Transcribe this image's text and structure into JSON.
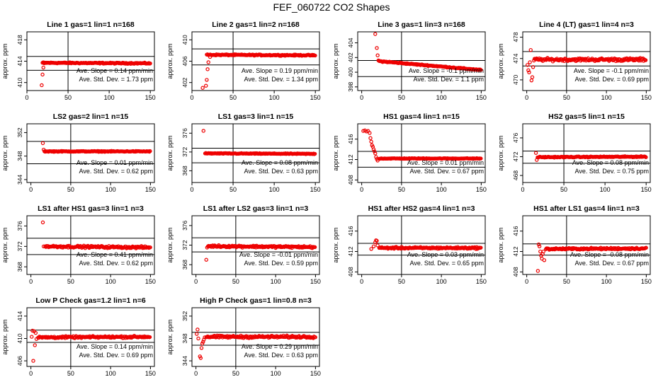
{
  "page": {
    "title": "FEF_060722  CO2 Shapes"
  },
  "chart_data": [
    {
      "type": "scatter",
      "title": "Line 1 gas=1 lin=1 n=168",
      "ylabel": "approx. ppm",
      "xlim": [
        0,
        155
      ],
      "ylim": [
        408.5,
        419.5
      ],
      "xticks": [
        0,
        50,
        100,
        150
      ],
      "yticks": [
        410,
        414,
        418
      ],
      "hlines": [
        414.9,
        412.3
      ],
      "vline": 50,
      "slope_label": "Ave. Slope =  0.14  ppm/min",
      "std_label": "Ave. Std. Dev. =  1.73  ppm",
      "shape": {
        "start": 19,
        "end": 150,
        "early": [
          [
            18,
            409.5
          ],
          [
            19,
            411.5
          ],
          [
            20,
            412.8
          ],
          [
            21,
            413.6
          ]
        ],
        "level": 413.7,
        "end_level": 413.6,
        "noise": 0.15
      }
    },
    {
      "type": "scatter",
      "title": "Line 2 gas=1 lin=2 n=168",
      "ylabel": "approx. ppm",
      "xlim": [
        0,
        155
      ],
      "ylim": [
        400.5,
        411.5
      ],
      "xticks": [
        0,
        50,
        100,
        150
      ],
      "yticks": [
        402,
        406,
        410
      ],
      "hlines": [
        408.3,
        405.3
      ],
      "vline": 50,
      "slope_label": "Ave. Slope =  0.19  ppm/min",
      "std_label": "Ave. Std. Dev. =  1.34  ppm",
      "shape": {
        "start": 18,
        "end": 150,
        "early": [
          [
            13,
            401
          ],
          [
            17,
            401.4
          ],
          [
            18,
            402.5
          ],
          [
            19,
            404.5
          ],
          [
            20,
            405.8
          ],
          [
            22,
            406.8
          ]
        ],
        "level": 407.2,
        "end_level": 407.1,
        "noise": 0.15
      }
    },
    {
      "type": "scatter",
      "title": "Line 3 gas=1 lin=3 n=168",
      "ylabel": "approx. ppm",
      "xlim": [
        -5,
        155
      ],
      "ylim": [
        397.5,
        405.5
      ],
      "xticks": [
        0,
        50,
        100,
        150
      ],
      "yticks": [
        398,
        400,
        402,
        404
      ],
      "hlines": [
        401.6,
        399.4
      ],
      "vline": 50,
      "slope_label": "Ave. Slope =  -0.1  ppm/min",
      "std_label": "Ave. Std. Dev. =  1.1  ppm",
      "shape": {
        "start": 22,
        "end": 150,
        "early": [
          [
            17,
            405.2
          ],
          [
            19,
            403.3
          ],
          [
            20,
            402.3
          ],
          [
            21,
            401.6
          ]
        ],
        "level": 401.5,
        "end_level": 400.3,
        "noise": 0.1
      }
    },
    {
      "type": "scatter",
      "title": "Line 4 (LT) gas=1 lin=4 n=3",
      "ylabel": "approx. ppm",
      "xlim": [
        -5,
        155
      ],
      "ylim": [
        468,
        479
      ],
      "xticks": [
        0,
        50,
        100,
        150
      ],
      "yticks": [
        470,
        474,
        478
      ],
      "hlines": [
        475.3,
        472.6
      ],
      "vline": 50,
      "slope_label": "Ave. Slope =  -0.1  ppm/min",
      "std_label": "Ave. Std. Dev. =  0.69  ppm",
      "shape": {
        "start": 9,
        "end": 150,
        "early": [
          [
            1,
            472.8
          ],
          [
            2,
            471.8
          ],
          [
            3,
            471.4
          ],
          [
            4,
            473.3
          ],
          [
            5,
            475.6
          ],
          [
            6,
            469.9
          ],
          [
            7,
            470.5
          ],
          [
            8,
            472.4
          ]
        ],
        "level": 473.8,
        "end_level": 473.8,
        "noise": 0.4
      }
    },
    {
      "type": "scatter",
      "title": "LS2 gas=2 lin=1 n=15",
      "ylabel": "approx. ppm",
      "xlim": [
        -5,
        155
      ],
      "ylim": [
        343.5,
        353.5
      ],
      "xticks": [
        0,
        50,
        100,
        150
      ],
      "yticks": [
        344,
        348,
        352
      ],
      "hlines": [
        350.5,
        346.7
      ],
      "vline": 50,
      "slope_label": "Ave. Slope =  0.01  ppm/min",
      "std_label": "Ave. Std. Dev. =  0.62  ppm",
      "shape": {
        "start": 17,
        "end": 150,
        "early": [
          [
            15,
            350.2
          ],
          [
            16,
            349.1
          ]
        ],
        "level": 348.8,
        "end_level": 348.8,
        "noise": 0.1
      }
    },
    {
      "type": "scatter",
      "title": "LS1 gas=3 lin=1 n=15",
      "ylabel": "approx. ppm",
      "xlim": [
        0,
        155
      ],
      "ylim": [
        365.5,
        378
      ],
      "xticks": [
        0,
        50,
        100,
        150
      ],
      "yticks": [
        368,
        372,
        376
      ],
      "hlines": [
        372.8,
        369.7
      ],
      "vline": 50,
      "slope_label": "Ave. Slope =  0.08  ppm/min",
      "std_label": "Ave. Std. Dev. =  0.63  ppm",
      "shape": {
        "start": 16,
        "end": 150,
        "early": [
          [
            14,
            376.5
          ]
        ],
        "level": 371.7,
        "end_level": 371.6,
        "noise": 0.12
      }
    },
    {
      "type": "scatter",
      "title": "HS1 gas=4 lin=1 n=15",
      "ylabel": "approx. ppm",
      "xlim": [
        -5,
        155
      ],
      "ylim": [
        407.5,
        419
      ],
      "xticks": [
        0,
        50,
        100,
        150
      ],
      "yticks": [
        408,
        412,
        416
      ],
      "hlines": [
        413.6,
        410.5
      ],
      "vline": 50,
      "slope_label": "Ave. Slope =  0.01  ppm/min",
      "std_label": "Ave. Std. Dev. =  0.67  ppm",
      "shape": {
        "start": 22,
        "end": 150,
        "early": [
          [
            2,
            417.6
          ],
          [
            4,
            417.7
          ],
          [
            6,
            417.5
          ],
          [
            8,
            417.6
          ],
          [
            10,
            417.2
          ],
          [
            11,
            416.2
          ],
          [
            12,
            415.5
          ],
          [
            13,
            414.8
          ],
          [
            14,
            414.5
          ],
          [
            15,
            414.0
          ],
          [
            16,
            413.6
          ],
          [
            17,
            413.2
          ],
          [
            18,
            412.5
          ],
          [
            19,
            412.1
          ],
          [
            20,
            411.8
          ]
        ],
        "level": 412.2,
        "end_level": 412.2,
        "noise": 0.1
      }
    },
    {
      "type": "scatter",
      "title": "HS2 gas=5 lin=1 n=15",
      "ylabel": "approx. ppm",
      "xlim": [
        0,
        155
      ],
      "ylim": [
        466.5,
        479
      ],
      "xticks": [
        0,
        50,
        100,
        150
      ],
      "yticks": [
        468,
        472,
        476
      ],
      "hlines": [
        473.2,
        470.6
      ],
      "vline": 50,
      "slope_label": "Ave. Slope =  0.08  ppm/min",
      "std_label": "Ave. Std. Dev. =  0.75  ppm",
      "shape": {
        "start": 18,
        "end": 150,
        "early": [
          [
            16,
            472.8
          ],
          [
            17,
            471.3
          ]
        ],
        "level": 471.9,
        "end_level": 472.0,
        "noise": 0.15
      }
    },
    {
      "type": "scatter",
      "title": "LS1 after HS1 gas=3 lin=1 n=3",
      "ylabel": "approx. ppm",
      "xlim": [
        -5,
        155
      ],
      "ylim": [
        366.5,
        378
      ],
      "xticks": [
        0,
        50,
        100,
        150
      ],
      "yticks": [
        368,
        372,
        376
      ],
      "hlines": [
        373.6,
        370.4
      ],
      "vline": 50,
      "slope_label": "Ave. Slope =  0.41  ppm/min",
      "std_label": "Ave. Std. Dev. =  0.62  ppm",
      "shape": {
        "start": 18,
        "end": 150,
        "early": [
          [
            15,
            376.7
          ],
          [
            16,
            372.0
          ]
        ],
        "level": 372.0,
        "end_level": 371.8,
        "noise": 0.3
      }
    },
    {
      "type": "scatter",
      "title": "LS1 after LS2 gas=3 lin=1 n=3",
      "ylabel": "approx. ppm",
      "xlim": [
        -5,
        155
      ],
      "ylim": [
        366,
        378
      ],
      "xticks": [
        0,
        50,
        100,
        150
      ],
      "yticks": [
        368,
        372,
        376
      ],
      "hlines": [
        373.5,
        370.6
      ],
      "vline": 50,
      "slope_label": "Ave. Slope =  -0.01  ppm/min",
      "std_label": "Ave. Std. Dev. =  0.59  ppm",
      "shape": {
        "start": 15,
        "end": 150,
        "early": [
          [
            13,
            369.0
          ],
          [
            14,
            371.5
          ]
        ],
        "level": 371.8,
        "end_level": 371.6,
        "noise": 0.3
      }
    },
    {
      "type": "scatter",
      "title": "HS1 after HS2 gas=4 lin=1 n=3",
      "ylabel": "approx. ppm",
      "xlim": [
        -5,
        155
      ],
      "ylim": [
        407.5,
        419
      ],
      "xticks": [
        0,
        50,
        100,
        150
      ],
      "yticks": [
        408,
        412,
        416
      ],
      "hlines": [
        413.6,
        411.3
      ],
      "vline": 50,
      "slope_label": "Ave. Slope =  0.03  ppm/min",
      "std_label": "Ave. Std. Dev. =  0.65  ppm",
      "shape": {
        "start": 22,
        "end": 150,
        "early": [
          [
            12,
            412.5
          ],
          [
            15,
            413.0
          ],
          [
            17,
            413.8
          ],
          [
            18,
            414.2
          ],
          [
            19,
            414.1
          ],
          [
            20,
            413.2
          ]
        ],
        "level": 412.7,
        "end_level": 412.7,
        "noise": 0.25
      }
    },
    {
      "type": "scatter",
      "title": "HS1 after LS1 gas=4 lin=1 n=3",
      "ylabel": "approx. ppm",
      "xlim": [
        -5,
        155
      ],
      "ylim": [
        407.5,
        419
      ],
      "xticks": [
        0,
        50,
        100,
        150
      ],
      "yticks": [
        408,
        412,
        416
      ],
      "hlines": [
        413.5,
        411.3
      ],
      "vline": 50,
      "slope_label": "Ave. Slope =  -0.08  ppm/min",
      "std_label": "Ave. Std. Dev. =  0.67  ppm",
      "shape": {
        "start": 24,
        "end": 150,
        "early": [
          [
            14,
            408.2
          ],
          [
            15,
            413.4
          ],
          [
            16,
            413.0
          ],
          [
            17,
            412.0
          ],
          [
            18,
            411.2
          ],
          [
            19,
            410.6
          ],
          [
            20,
            411.5
          ],
          [
            21,
            412.0
          ],
          [
            22,
            410.3
          ]
        ],
        "level": 412.5,
        "end_level": 412.6,
        "noise": 0.25
      }
    },
    {
      "type": "scatter",
      "title": "Low P Check gas=1.2 lin=1 n=6",
      "ylabel": "approx. ppm",
      "xlim": [
        -5,
        155
      ],
      "ylim": [
        405,
        415.5
      ],
      "xticks": [
        0,
        50,
        100,
        150
      ],
      "yticks": [
        406,
        410,
        414
      ],
      "hlines": [
        411.5,
        409.3
      ],
      "vline": 50,
      "slope_label": "Ave. Slope =  0.14  ppm/min",
      "std_label": "Ave. Std. Dev. =  0.69  ppm",
      "shape": {
        "start": 9,
        "end": 150,
        "early": [
          [
            1,
            410.3
          ],
          [
            2,
            411.4
          ],
          [
            3,
            406.0
          ],
          [
            4,
            411.3
          ],
          [
            5,
            408.8
          ],
          [
            6,
            411.0
          ],
          [
            7,
            409.9
          ]
        ],
        "level": 410.2,
        "end_level": 410.3,
        "noise": 0.25
      }
    },
    {
      "type": "scatter",
      "title": "High P Check gas=1 lin=0.8 n=3",
      "ylabel": "approx. ppm",
      "xlim": [
        -5,
        155
      ],
      "ylim": [
        343,
        353.5
      ],
      "xticks": [
        0,
        50,
        100,
        150
      ],
      "yticks": [
        344,
        348,
        352
      ],
      "hlines": [
        349.1,
        346.8
      ],
      "vline": 50,
      "slope_label": "Ave. Slope =  0.29  ppm/min",
      "std_label": "Ave. Std. Dev. =  0.63  ppm",
      "shape": {
        "start": 13,
        "end": 150,
        "early": [
          [
            1,
            348.8
          ],
          [
            2,
            349.6
          ],
          [
            3,
            348.0
          ],
          [
            5,
            344.8
          ],
          [
            6,
            344.5
          ],
          [
            7,
            346.3
          ],
          [
            8,
            347.1
          ],
          [
            9,
            347.4
          ],
          [
            10,
            347.8
          ],
          [
            11,
            348.2
          ]
        ],
        "level": 348.3,
        "end_level": 348.3,
        "noise": 0.3
      }
    }
  ]
}
